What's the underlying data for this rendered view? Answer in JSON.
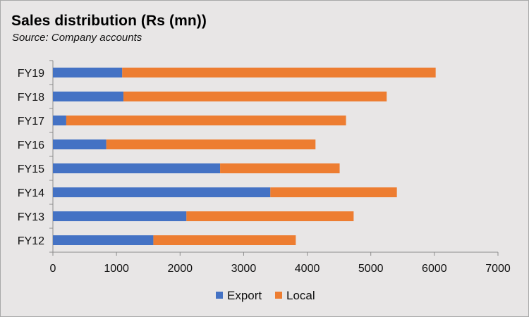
{
  "colors": {
    "export": "#4472c4",
    "local": "#ed7d31"
  },
  "chart_data": {
    "type": "bar",
    "orientation": "horizontal",
    "stacked": true,
    "title": "Sales distribution (Rs (mn))",
    "subtitle": "Source: Company accounts",
    "categories": [
      "FY19",
      "FY18",
      "FY17",
      "FY16",
      "FY15",
      "FY14",
      "FY13",
      "FY12"
    ],
    "series": [
      {
        "name": "Export",
        "values": [
          1090,
          1110,
          210,
          840,
          2630,
          3420,
          2100,
          1580
        ]
      },
      {
        "name": "Local",
        "values": [
          4930,
          4140,
          4400,
          3290,
          1880,
          1990,
          2630,
          2240
        ]
      }
    ],
    "xlim": [
      0,
      7000
    ],
    "xticks": [
      "0",
      "1000",
      "2000",
      "3000",
      "4000",
      "5000",
      "6000",
      "7000"
    ],
    "legend": "bottom",
    "grid": false
  }
}
